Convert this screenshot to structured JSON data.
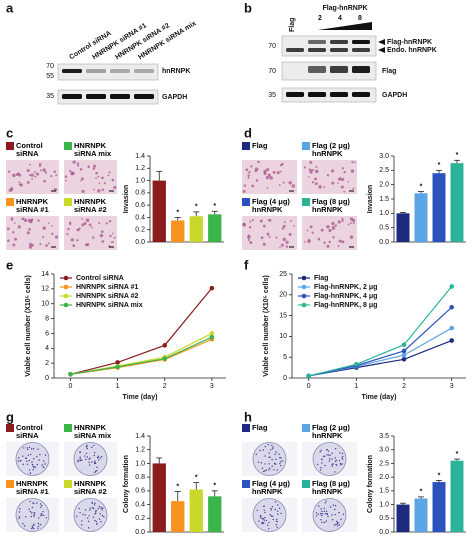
{
  "blot_a": {
    "label": "a",
    "lanes": [
      "Control siRNA",
      "HNRNPK siRNA #1",
      "HNRNPK siRNA #2",
      "HNRNPK siRNA mix"
    ],
    "markers": [
      "70",
      "55",
      "35"
    ],
    "bands": [
      "hnRNPK",
      "GAPDH"
    ]
  },
  "blot_b": {
    "label": "b",
    "header": "Flag-hnRNPK",
    "lanes": [
      "Flag",
      "2",
      "4",
      "8"
    ],
    "markers": [
      "70",
      "70",
      "35"
    ],
    "bands": [
      "Flag-hnRNPK",
      "Endo. hnRNPK",
      "Flag",
      "GAPDH"
    ]
  },
  "chart_data": [
    {
      "type": "bar",
      "panel": "c",
      "y_label": "Invasion",
      "categories": [
        "Control siRNA",
        "HNRNPK siRNA #1",
        "HNRNPK siRNA #2",
        "HNRNPK siRNA mix"
      ],
      "values": [
        1.0,
        0.35,
        0.42,
        0.45
      ],
      "errors": [
        0.15,
        0.05,
        0.07,
        0.05
      ],
      "significance": [
        null,
        "*",
        "*",
        "*"
      ],
      "colors": [
        "#8b1c1c",
        "#f7931e",
        "#c9d82b",
        "#39b54a"
      ],
      "ylim": [
        0,
        1.4
      ],
      "yticks": [
        {
          "value": 0,
          "label": "0.0"
        },
        0.2,
        0.4,
        0.6,
        0.8,
        {
          "value": 1,
          "label": "1.0"
        },
        1.2,
        1.4
      ]
    },
    {
      "type": "bar",
      "panel": "d",
      "y_label": "Invasion",
      "categories": [
        "Flag",
        "Flag (2 μg) hnRNPK",
        "Flag (4 μg) hnRNPK",
        "Flag (8 μg) hnRNPK"
      ],
      "values": [
        1.0,
        1.7,
        2.4,
        2.75
      ],
      "errors": [
        0.03,
        0.06,
        0.1,
        0.1
      ],
      "significance": [
        null,
        "*",
        "*",
        "*"
      ],
      "colors": [
        "#1c2a80",
        "#5ba4e5",
        "#2b52be",
        "#2bb39a"
      ],
      "ylim": [
        0,
        3
      ],
      "yticks": [
        {
          "value": 0,
          "label": "0.0"
        },
        0.5,
        {
          "value": 1,
          "label": "1.0"
        },
        1.5,
        {
          "value": 2,
          "label": "2.0"
        },
        2.5,
        {
          "value": 3,
          "label": "3.0"
        }
      ]
    },
    {
      "type": "line",
      "panel": "e",
      "y_label": "Viable cell number (X10⁵ cells)",
      "x_label": "Time (day)",
      "x": [
        0,
        1,
        2,
        3
      ],
      "xlim": [
        -0.35,
        3.3
      ],
      "xticks": [
        0,
        1,
        2,
        3
      ],
      "ylim": [
        0,
        14
      ],
      "yticks": [
        0,
        2,
        4,
        6,
        8,
        10,
        12,
        14
      ],
      "series": [
        {
          "name": "Control siRNA",
          "color": "#8b1c1c",
          "values": [
            0.5,
            2.1,
            4.4,
            12.1
          ]
        },
        {
          "name": "HNRNPK siRNA #1",
          "color": "#f7931e",
          "values": [
            0.5,
            1.4,
            2.5,
            5.2
          ]
        },
        {
          "name": "HNRNPK siRNA #2",
          "color": "#c9d82b",
          "values": [
            0.5,
            1.6,
            2.8,
            6.0
          ]
        },
        {
          "name": "HNRNPK siRNA mix",
          "color": "#39b54a",
          "values": [
            0.5,
            1.5,
            2.6,
            5.5
          ]
        }
      ]
    },
    {
      "type": "line",
      "panel": "f",
      "y_label": "Viable cell number (X10⁵ cells)",
      "x_label": "Time (day)",
      "x": [
        0,
        1,
        2,
        3
      ],
      "xlim": [
        -0.35,
        3.3
      ],
      "xticks": [
        0,
        1,
        2,
        3
      ],
      "ylim": [
        0,
        25
      ],
      "yticks": [
        0,
        5,
        10,
        15,
        20,
        25
      ],
      "series": [
        {
          "name": "Flag",
          "color": "#1c2a80",
          "values": [
            0.5,
            2.5,
            4.5,
            9
          ]
        },
        {
          "name": "Flag-hnRNPK, 2 μg",
          "color": "#5ba4e5",
          "values": [
            0.5,
            2.8,
            5.5,
            12
          ]
        },
        {
          "name": "Flag-hnRNPK, 4 μg",
          "color": "#2b52be",
          "values": [
            0.5,
            3,
            6.5,
            17
          ]
        },
        {
          "name": "Flag-hnRNPK, 8 μg",
          "color": "#2bb39a",
          "values": [
            0.5,
            3.3,
            8,
            22
          ]
        }
      ]
    },
    {
      "type": "bar",
      "panel": "g",
      "y_label": "Colony formation",
      "categories": [
        "Control siRNA",
        "HNRNPK siRNA #1",
        "HNRNPK siRNA #2",
        "HNRNPK siRNA mix"
      ],
      "values": [
        1.0,
        0.45,
        0.62,
        0.52
      ],
      "errors": [
        0.08,
        0.14,
        0.1,
        0.08
      ],
      "significance": [
        null,
        "*",
        "*",
        "*"
      ],
      "colors": [
        "#8b1c1c",
        "#f7931e",
        "#c9d82b",
        "#39b54a"
      ],
      "ylim": [
        0,
        1.4
      ],
      "yticks": [
        {
          "value": 0,
          "label": "0.0"
        },
        0.2,
        0.4,
        0.6,
        0.8,
        {
          "value": 1,
          "label": "1.0"
        },
        1.2,
        1.4
      ]
    },
    {
      "type": "bar",
      "panel": "h",
      "y_label": "Colony formation",
      "categories": [
        "Flag",
        "Flag (2 μg) hnRNPK",
        "Flag (4 μg) hnRNPK",
        "Flag (8 μg) hnRNPK"
      ],
      "values": [
        1.0,
        1.22,
        1.82,
        2.6
      ],
      "errors": [
        0.05,
        0.06,
        0.06,
        0.06
      ],
      "significance": [
        null,
        "*",
        "*",
        "*"
      ],
      "colors": [
        "#1c2a80",
        "#5ba4e5",
        "#2b52be",
        "#2bb39a"
      ],
      "ylim": [
        0,
        3.5
      ],
      "yticks": [
        {
          "value": 0,
          "label": "0.0"
        },
        0.5,
        {
          "value": 1,
          "label": "1.0"
        },
        1.5,
        {
          "value": 2,
          "label": "2.0"
        },
        2.5,
        {
          "value": 3,
          "label": "3.0"
        },
        3.5
      ]
    }
  ]
}
